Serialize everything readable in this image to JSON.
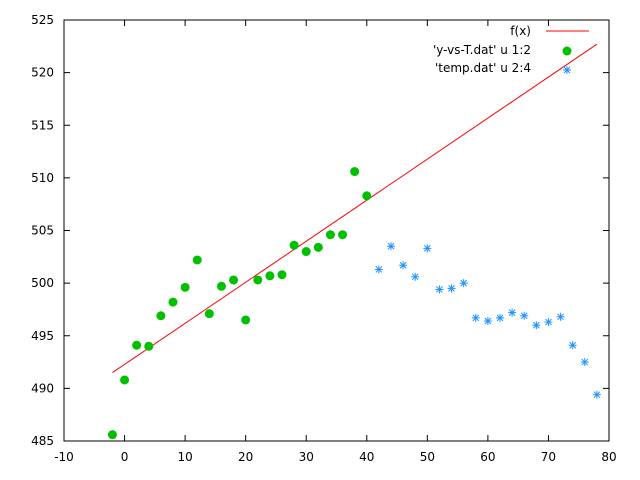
{
  "chart_data": {
    "type": "scatter",
    "xlim": [
      -10,
      80
    ],
    "ylim": [
      485,
      525
    ],
    "x_ticks": [
      -10,
      0,
      10,
      20,
      30,
      40,
      50,
      60,
      70,
      80
    ],
    "y_ticks": [
      485,
      490,
      495,
      500,
      505,
      510,
      515,
      520,
      525
    ],
    "grid": false,
    "legend_position": "top-right",
    "series": [
      {
        "name": "f(x)",
        "kind": "line",
        "color": "#ff0000",
        "x": [
          -2,
          78
        ],
        "y": [
          491.5,
          522.7
        ]
      },
      {
        "name": "'y-vs-T.dat' u 1:2",
        "kind": "points",
        "marker": "circle",
        "color": "#00c000",
        "x": [
          -2,
          0,
          2,
          4,
          6,
          8,
          10,
          12,
          14,
          16,
          18,
          20,
          22,
          24,
          26,
          28,
          30,
          32,
          34,
          36,
          38,
          40
        ],
        "y": [
          485.6,
          490.8,
          494.1,
          494.0,
          496.9,
          498.2,
          499.6,
          502.2,
          497.1,
          499.7,
          500.3,
          496.5,
          500.3,
          500.7,
          500.8,
          503.6,
          503.0,
          503.4,
          504.6,
          504.6,
          510.6,
          508.3
        ]
      },
      {
        "name": "'temp.dat' u 2:4",
        "kind": "points",
        "marker": "star",
        "color": "#1e90ff",
        "x": [
          -2,
          0,
          2,
          4,
          6,
          8,
          10,
          12,
          14,
          16,
          18,
          20,
          22,
          24,
          26,
          28,
          30,
          32,
          34,
          36,
          38,
          40,
          42,
          44,
          46,
          48,
          50,
          52,
          54,
          56,
          58,
          60,
          62,
          64,
          66,
          68,
          70,
          72,
          74,
          76,
          78
        ],
        "y": [
          485.6,
          490.8,
          494.1,
          494.0,
          496.9,
          498.2,
          499.6,
          502.2,
          497.1,
          499.7,
          500.3,
          496.5,
          500.3,
          500.7,
          500.8,
          503.6,
          503.0,
          503.4,
          504.6,
          504.6,
          510.6,
          508.3,
          501.3,
          503.5,
          501.7,
          500.6,
          503.3,
          499.4,
          499.5,
          500.0,
          496.7,
          496.4,
          496.7,
          497.2,
          496.9,
          496.0,
          496.3,
          496.8,
          494.1,
          492.5,
          489.4
        ]
      }
    ]
  }
}
